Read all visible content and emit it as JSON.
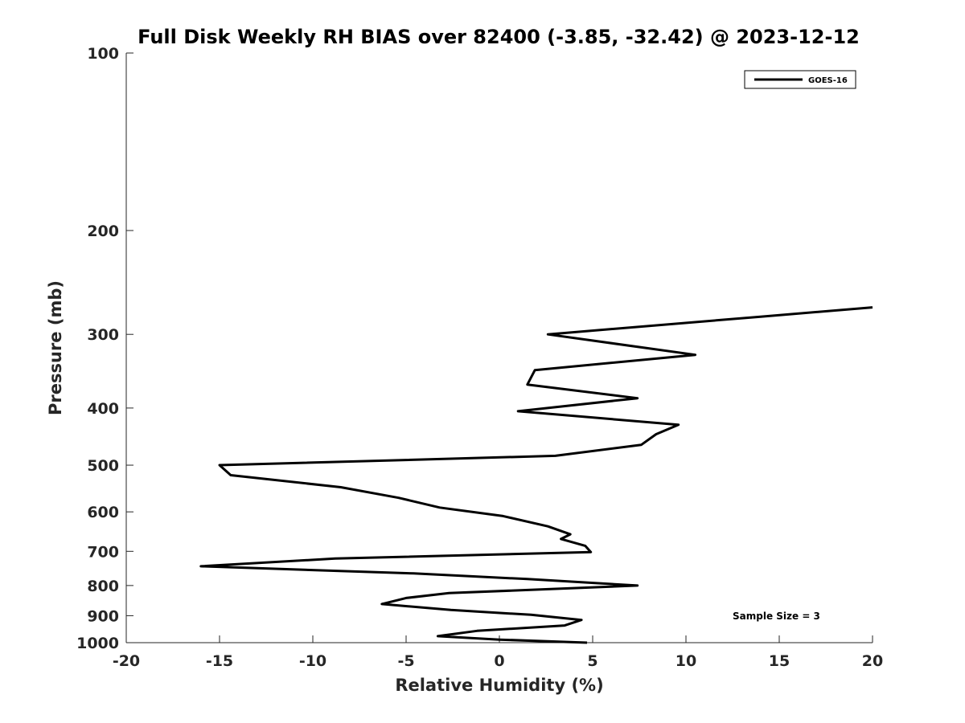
{
  "chart_data": {
    "type": "line",
    "title": "Full Disk Weekly RH BIAS over 82400 (-3.85, -32.42) @ 2023-12-12",
    "xlabel": "Relative Humidity (%)",
    "ylabel": "Pressure (mb)",
    "xlim": [
      -20,
      20
    ],
    "ylim": [
      100,
      1000
    ],
    "y_scale": "log",
    "y_reversed": true,
    "x_ticks": [
      -20,
      -15,
      -10,
      -5,
      0,
      5,
      10,
      15,
      20
    ],
    "y_ticks": [
      100,
      200,
      300,
      400,
      500,
      600,
      700,
      800,
      900,
      1000
    ],
    "grid": false,
    "legend_position": "top-right",
    "series": [
      {
        "name": "GOES-16",
        "color": "#000000",
        "points": [
          [
            20.0,
            270
          ],
          [
            14.0,
            280
          ],
          [
            2.6,
            300
          ],
          [
            10.5,
            325
          ],
          [
            1.9,
            345
          ],
          [
            1.5,
            365
          ],
          [
            7.4,
            385
          ],
          [
            1.0,
            405
          ],
          [
            9.6,
            427
          ],
          [
            8.4,
            443
          ],
          [
            7.6,
            462
          ],
          [
            3.0,
            482
          ],
          [
            -15.0,
            500
          ],
          [
            -14.4,
            520
          ],
          [
            -8.5,
            545
          ],
          [
            -5.4,
            568
          ],
          [
            -3.2,
            590
          ],
          [
            0.2,
            610
          ],
          [
            2.6,
            635
          ],
          [
            3.8,
            655
          ],
          [
            3.3,
            667
          ],
          [
            4.6,
            685
          ],
          [
            4.9,
            702
          ],
          [
            -8.8,
            720
          ],
          [
            -16.0,
            742
          ],
          [
            -4.6,
            763
          ],
          [
            1.5,
            780
          ],
          [
            7.4,
            800
          ],
          [
            -2.7,
            824
          ],
          [
            -5.0,
            840
          ],
          [
            -6.3,
            860
          ],
          [
            -2.6,
            880
          ],
          [
            1.7,
            897
          ],
          [
            4.4,
            915
          ],
          [
            3.5,
            935
          ],
          [
            -1.2,
            955
          ],
          [
            -3.3,
            975
          ],
          [
            0.0,
            988
          ],
          [
            4.7,
            1000
          ]
        ]
      }
    ],
    "annotations": [
      {
        "text": "Sample Size = 3",
        "x": 14.0,
        "y": 900
      }
    ]
  }
}
